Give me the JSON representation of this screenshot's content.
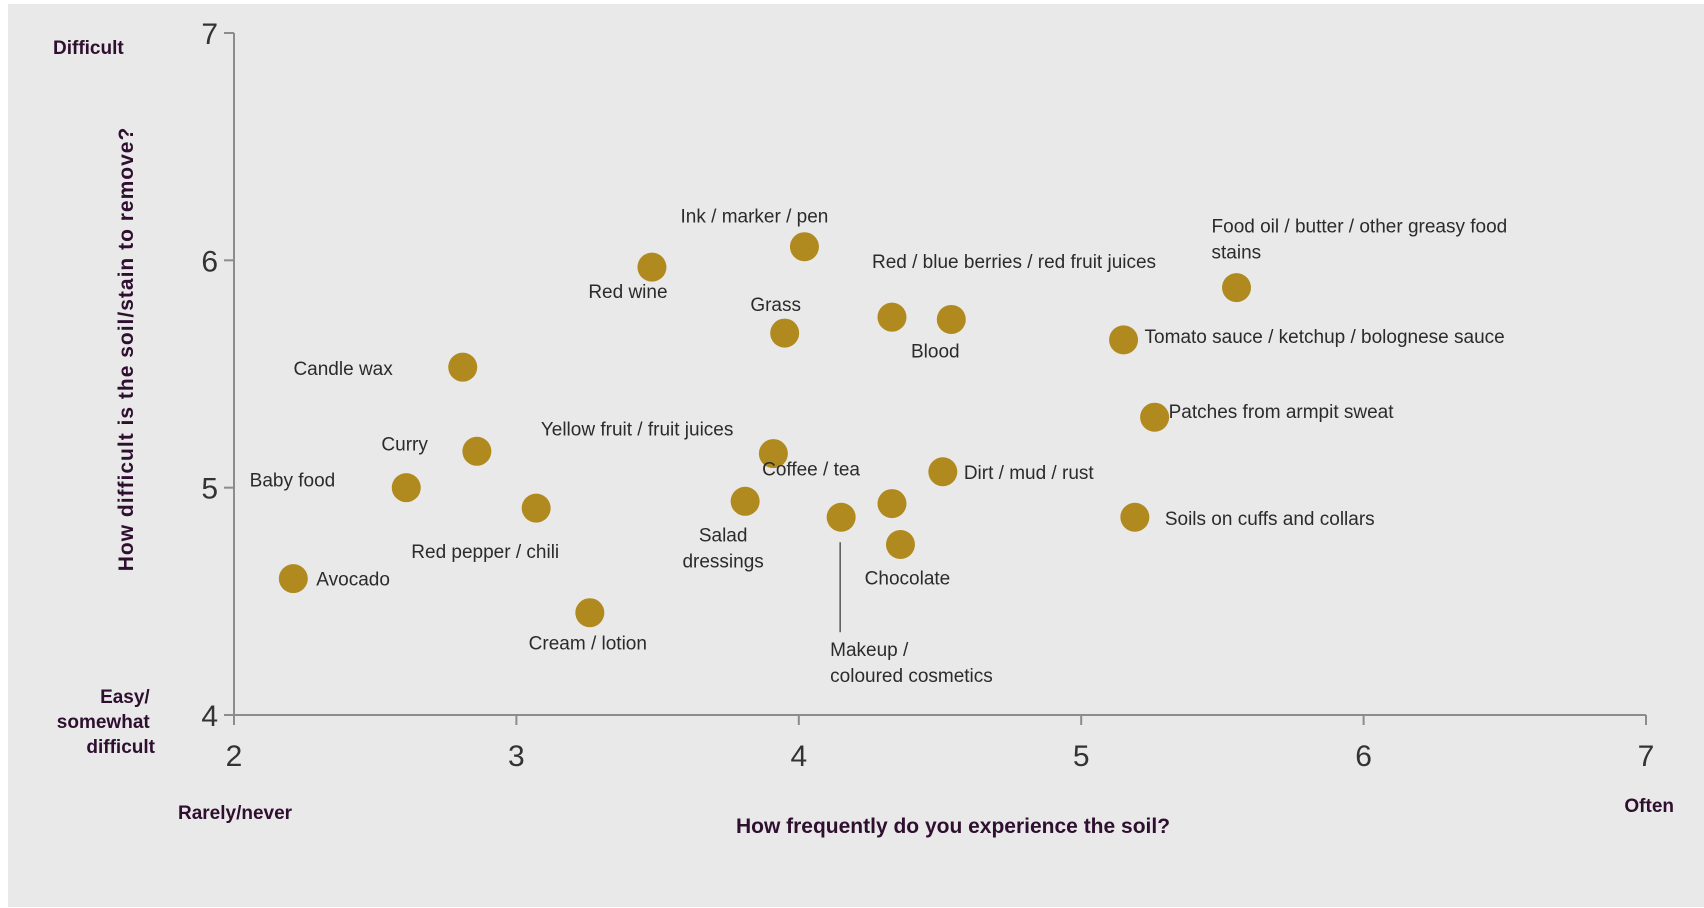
{
  "colors": {
    "background": "#e9e9e9",
    "marker": "#b08a1f",
    "axis": "#8c8c8c",
    "title": "#2f0f2f"
  },
  "chart_data": {
    "type": "scatter",
    "title": "",
    "xlabel": "How frequently do you experience the soil?",
    "ylabel": "How difficult is the soil/stain to remove?",
    "xlim": [
      2,
      7
    ],
    "ylim": [
      4,
      7
    ],
    "xticks": [
      "2",
      "3",
      "4",
      "5",
      "6",
      "7"
    ],
    "yticks": [
      "4",
      "5",
      "6",
      "7"
    ],
    "x_low_label": "Rarely/never",
    "x_high_label": "Often",
    "y_high_label": "Difficult",
    "y_low_label": [
      "Easy/",
      "somewhat",
      "difficult"
    ],
    "grid": false,
    "legend": "none",
    "points": [
      {
        "label": [
          "Avocado"
        ],
        "x": 2.21,
        "y": 4.6
      },
      {
        "label": [
          "Baby food"
        ],
        "x": 2.61,
        "y": 5.0
      },
      {
        "label": [
          "Candle wax"
        ],
        "x": 2.81,
        "y": 5.53
      },
      {
        "label": [
          "Curry"
        ],
        "x": 2.86,
        "y": 5.16
      },
      {
        "label": [
          "Red pepper / chili"
        ],
        "x": 3.07,
        "y": 4.91
      },
      {
        "label": [
          "Cream / lotion"
        ],
        "x": 3.26,
        "y": 4.45
      },
      {
        "label": [
          "Red wine"
        ],
        "x": 3.48,
        "y": 5.97
      },
      {
        "label": [
          "Salad",
          "dressings"
        ],
        "x": 3.81,
        "y": 4.94
      },
      {
        "label": [
          "Yellow fruit / fruit juices"
        ],
        "x": 3.91,
        "y": 5.15
      },
      {
        "label": [
          "Grass"
        ],
        "x": 3.95,
        "y": 5.68
      },
      {
        "label": [
          "Ink / marker / pen"
        ],
        "x": 4.02,
        "y": 6.06
      },
      {
        "label": [
          "Makeup /",
          "coloured cosmetics"
        ],
        "x": 4.15,
        "y": 4.87
      },
      {
        "label": [
          "Coffee / tea"
        ],
        "x": 4.33,
        "y": 4.93
      },
      {
        "label": [
          "Red / blue berries / red fruit juices"
        ],
        "x": 4.33,
        "y": 5.75
      },
      {
        "label": [
          "Chocolate"
        ],
        "x": 4.36,
        "y": 4.75
      },
      {
        "label": [
          "Dirt / mud / rust"
        ],
        "x": 4.51,
        "y": 5.07
      },
      {
        "label": [
          "Blood"
        ],
        "x": 4.54,
        "y": 5.74
      },
      {
        "label": [
          "Tomato sauce / ketchup / bolognese sauce"
        ],
        "x": 5.15,
        "y": 5.65
      },
      {
        "label": [
          "Soils on cuffs and collars"
        ],
        "x": 5.19,
        "y": 4.87
      },
      {
        "label": [
          "Patches from armpit sweat"
        ],
        "x": 5.26,
        "y": 5.31
      },
      {
        "label": [
          "Food oil / butter / other greasy food",
          "stains"
        ],
        "x": 5.55,
        "y": 5.88
      }
    ]
  }
}
